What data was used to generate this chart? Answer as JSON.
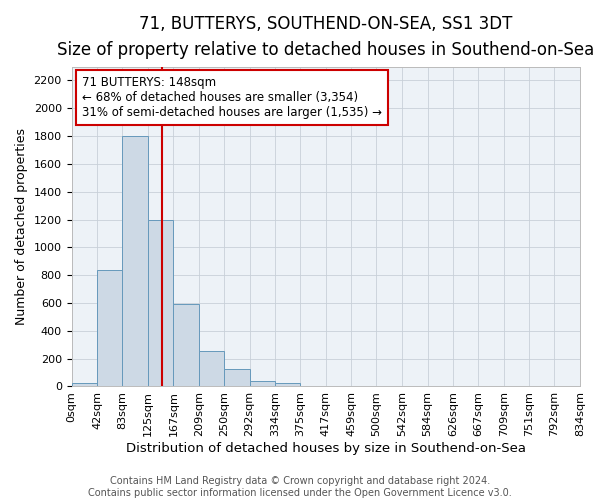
{
  "title": "71, BUTTERYS, SOUTHEND-ON-SEA, SS1 3DT",
  "subtitle": "Size of property relative to detached houses in Southend-on-Sea",
  "xlabel": "Distribution of detached houses by size in Southend-on-Sea",
  "ylabel": "Number of detached properties",
  "footer_line1": "Contains HM Land Registry data © Crown copyright and database right 2024.",
  "footer_line2": "Contains public sector information licensed under the Open Government Licence v3.0.",
  "bar_edges": [
    0,
    42,
    83,
    125,
    167,
    209,
    250,
    292,
    334,
    375,
    417,
    459,
    500,
    542,
    584,
    626,
    667,
    709,
    751,
    792,
    834
  ],
  "bar_heights": [
    25,
    840,
    1800,
    1200,
    590,
    255,
    125,
    42,
    25,
    0,
    0,
    0,
    0,
    0,
    0,
    0,
    0,
    0,
    0,
    0
  ],
  "bar_color": "#cdd9e5",
  "bar_edgecolor": "#6699bb",
  "x_tick_labels": [
    "0sqm",
    "42sqm",
    "83sqm",
    "125sqm",
    "167sqm",
    "209sqm",
    "250sqm",
    "292sqm",
    "334sqm",
    "375sqm",
    "417sqm",
    "459sqm",
    "500sqm",
    "542sqm",
    "584sqm",
    "626sqm",
    "667sqm",
    "709sqm",
    "751sqm",
    "792sqm",
    "834sqm"
  ],
  "ylim": [
    0,
    2300
  ],
  "yticks": [
    0,
    200,
    400,
    600,
    800,
    1000,
    1200,
    1400,
    1600,
    1800,
    2000,
    2200
  ],
  "vline_x": 148,
  "vline_color": "#cc0000",
  "annotation_title": "71 BUTTERYS: 148sqm",
  "annotation_line1": "← 68% of detached houses are smaller (3,354)",
  "annotation_line2": "31% of semi-detached houses are larger (1,535) →",
  "background_color": "#edf2f7",
  "grid_color": "#c8d0d8",
  "title_fontsize": 12,
  "subtitle_fontsize": 10,
  "xlabel_fontsize": 9.5,
  "ylabel_fontsize": 9,
  "tick_fontsize": 8,
  "footer_fontsize": 7,
  "annotation_fontsize": 8.5
}
